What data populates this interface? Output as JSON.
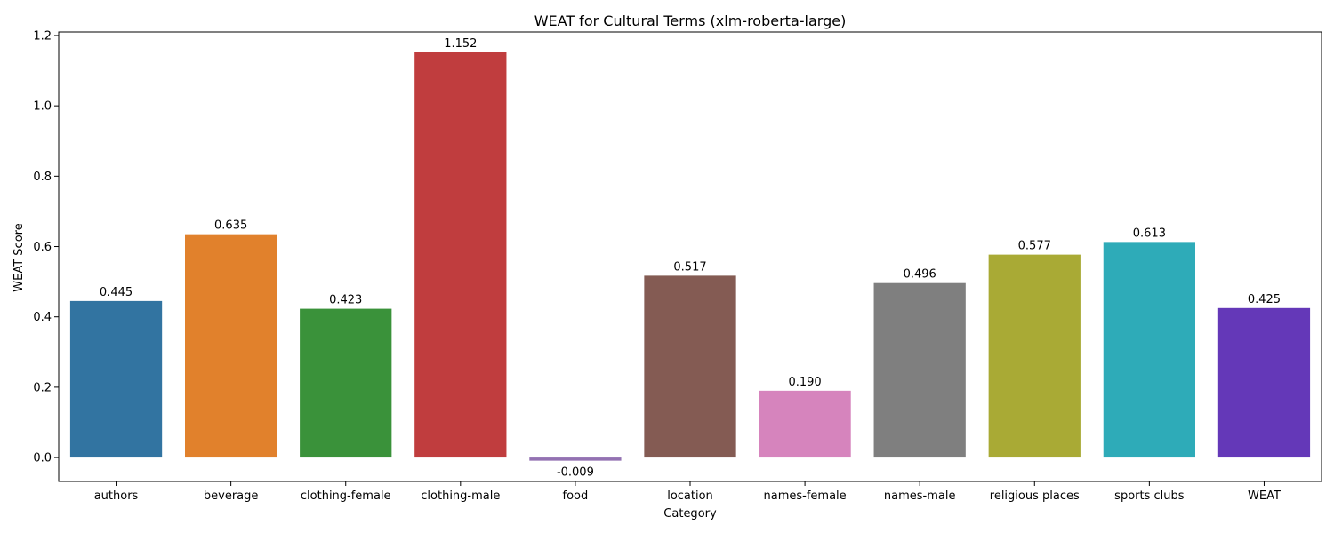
{
  "chart_data": {
    "type": "bar",
    "title": "WEAT for Cultural Terms (xlm-roberta-large)",
    "xlabel": "Category",
    "ylabel": "WEAT Score",
    "ylim": [
      -0.068,
      1.21
    ],
    "yticks": [
      0.0,
      0.2,
      0.4,
      0.6,
      0.8,
      1.0,
      1.2
    ],
    "ytick_labels": [
      "0.0",
      "0.2",
      "0.4",
      "0.6",
      "0.8",
      "1.0",
      "1.2"
    ],
    "categories": [
      "authors",
      "beverage",
      "clothing-female",
      "clothing-male",
      "food",
      "location",
      "names-female",
      "names-male",
      "religious places",
      "sports clubs",
      "WEAT"
    ],
    "values": [
      0.445,
      0.635,
      0.423,
      1.152,
      -0.009,
      0.517,
      0.19,
      0.496,
      0.577,
      0.613,
      0.425
    ],
    "value_labels": [
      "0.445",
      "0.635",
      "0.423",
      "1.152",
      "-0.009",
      "0.517",
      "0.190",
      "0.496",
      "0.577",
      "0.613",
      "0.425"
    ],
    "colors": [
      "#3274a1",
      "#e1812c",
      "#3a923a",
      "#c03d3e",
      "#9372b2",
      "#845b53",
      "#d684bd",
      "#7f7f7f",
      "#a9aa35",
      "#2eabb8",
      "#6438b8"
    ],
    "grid": false,
    "legend": "none"
  }
}
